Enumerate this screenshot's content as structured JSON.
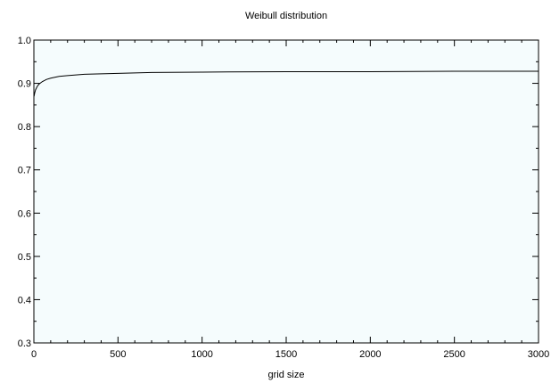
{
  "chart_data": {
    "type": "line",
    "title": "Weibull distribution",
    "xlabel": "grid size",
    "ylabel": "",
    "xlim": [
      0,
      3000
    ],
    "ylim": [
      0.3,
      1.0
    ],
    "x_ticks": [
      0,
      500,
      1000,
      1500,
      2000,
      2500,
      3000
    ],
    "x_tick_labels": [
      "0",
      "500",
      "1000",
      "1500",
      "2000",
      "2500",
      "3000"
    ],
    "y_ticks": [
      0.3,
      0.4,
      0.5,
      0.6,
      0.7,
      0.8,
      0.9,
      1.0
    ],
    "y_tick_labels": [
      "0.3",
      "0.4",
      "0.5",
      "0.6",
      "0.7",
      "0.8",
      "0.9",
      "1.0"
    ],
    "grid": false,
    "colors": {
      "plot_background": "#f5fcfd",
      "line": "#000000",
      "axis": "#000000"
    },
    "series": [
      {
        "x": [
          1,
          5,
          10,
          20,
          30,
          50,
          75,
          100,
          150,
          200,
          300,
          400,
          500,
          700,
          1000,
          1500,
          2000,
          2500,
          3000
        ],
        "values": [
          0.87,
          0.878,
          0.885,
          0.893,
          0.898,
          0.904,
          0.909,
          0.912,
          0.916,
          0.918,
          0.921,
          0.922,
          0.923,
          0.925,
          0.926,
          0.927,
          0.927,
          0.928,
          0.928
        ]
      }
    ]
  }
}
